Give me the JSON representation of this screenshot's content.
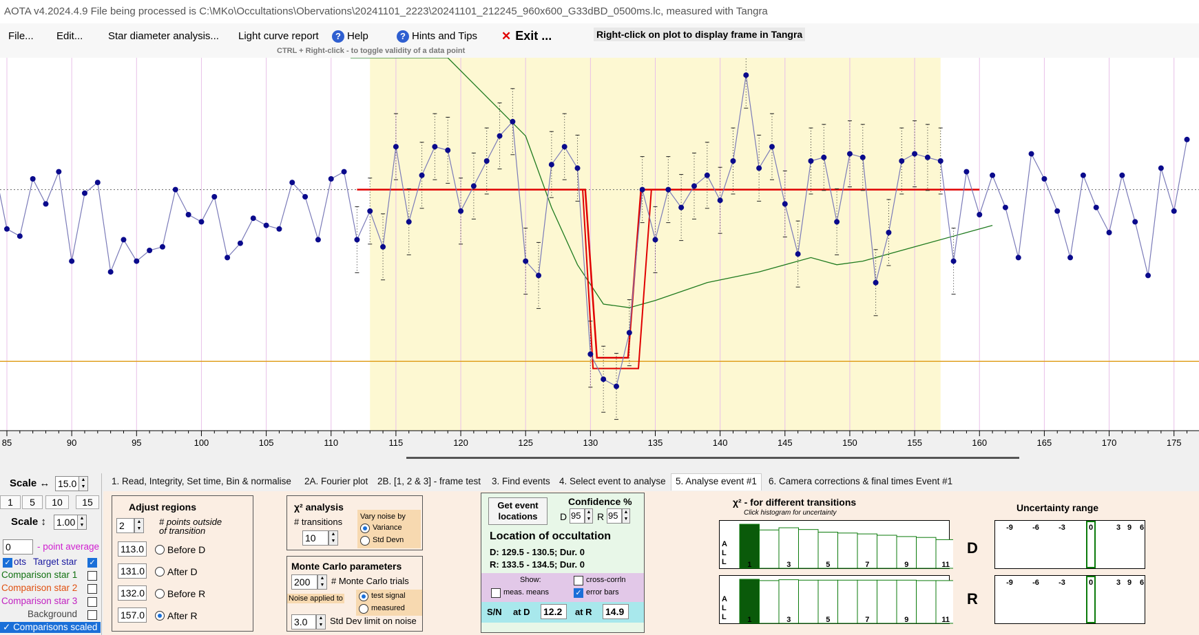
{
  "title": "AOTA v4.2024.4.9    File being processed is C:\\MKo\\Occultations\\Obervations\\20241101_2223\\20241101_212245_960x600_G33dBD_0500ms.lc, measured with Tangra",
  "menu": {
    "file": "File...",
    "edit": "Edit...",
    "star_diameter": "Star diameter analysis...",
    "light_curve": "Light curve report",
    "help": "Help",
    "hints": "Hints and Tips",
    "exit": "Exit ...",
    "rightclick_hint": "Right-click on plot to display frame in Tangra",
    "ctrl_hint": "CTRL + Right-click  -  to toggle validity of a data point"
  },
  "colors": {
    "plot_bg": "#ffffff",
    "event_region": "#fdf8d2",
    "data_line": "#7a7ab8",
    "data_point": "#0a0a8c",
    "model_red": "#e00000",
    "green_curve": "#1e7a1e",
    "orange_line": "#e0a020",
    "pink_grid": "#e8c0e8"
  },
  "chart_data": {
    "type": "line",
    "x_ticks": [
      "85",
      "90",
      "95",
      "100",
      "105",
      "110",
      "115",
      "120",
      "125",
      "130",
      "135",
      "140",
      "145",
      "150",
      "155",
      "160",
      "165",
      "170",
      "175"
    ],
    "xlim": [
      84.5,
      176
    ],
    "ylim": [
      0,
      1
    ],
    "event_region": [
      113,
      157
    ],
    "baseline_y": 0.67,
    "points_x": [
      84,
      85,
      86,
      87,
      88,
      89,
      90,
      91,
      92,
      93,
      94,
      95,
      96,
      97,
      98,
      99,
      100,
      101,
      102,
      103,
      104,
      105,
      106,
      107,
      108,
      109,
      110,
      111,
      112,
      113,
      114,
      115,
      116,
      117,
      118,
      119,
      120,
      121,
      122,
      123,
      124,
      125,
      126,
      127,
      128,
      129,
      130,
      131,
      132,
      133,
      134,
      135,
      136,
      137,
      138,
      139,
      140,
      141,
      142,
      143,
      144,
      145,
      146,
      147,
      148,
      149,
      150,
      151,
      152,
      153,
      154,
      155,
      156,
      157,
      158,
      159,
      160,
      161,
      162,
      163,
      164,
      165,
      166,
      167,
      168,
      169,
      170,
      171,
      172,
      173,
      174,
      175,
      176
    ],
    "points_y": [
      0.74,
      0.56,
      0.54,
      0.7,
      0.63,
      0.72,
      0.47,
      0.66,
      0.69,
      0.44,
      0.53,
      0.47,
      0.5,
      0.51,
      0.67,
      0.6,
      0.58,
      0.65,
      0.48,
      0.52,
      0.59,
      0.57,
      0.56,
      0.69,
      0.65,
      0.53,
      0.7,
      0.72,
      0.53,
      0.61,
      0.51,
      0.79,
      0.58,
      0.71,
      0.79,
      0.78,
      0.61,
      0.68,
      0.75,
      0.82,
      0.86,
      0.47,
      0.43,
      0.74,
      0.79,
      0.73,
      0.21,
      0.14,
      0.12,
      0.27,
      0.67,
      0.53,
      0.67,
      0.62,
      0.68,
      0.71,
      0.64,
      0.75,
      0.99,
      0.73,
      0.79,
      0.63,
      0.49,
      0.75,
      0.76,
      0.58,
      0.77,
      0.76,
      0.41,
      0.55,
      0.75,
      0.77,
      0.76,
      0.75,
      0.47,
      0.72,
      0.6,
      0.71,
      0.62,
      0.48,
      0.77,
      0.7,
      0.61,
      0.48,
      0.71,
      0.62,
      0.55,
      0.71,
      0.58,
      0.43,
      0.73,
      0.61,
      0.81
    ],
    "red_model": {
      "d": 130.0,
      "r": 133.5,
      "top": 0.67,
      "bottom": 0.2
    },
    "green_curve_x": [
      111.5,
      119,
      125,
      127,
      129,
      131,
      133,
      135,
      139,
      143,
      147,
      149,
      151,
      155,
      159,
      161
    ],
    "green_curve_y": [
      1.2,
      1.15,
      0.82,
      0.62,
      0.46,
      0.35,
      0.34,
      0.36,
      0.41,
      0.44,
      0.48,
      0.46,
      0.47,
      0.51,
      0.55,
      0.57
    ],
    "orange_line_y": 0.19
  },
  "left": {
    "scale_h_label": "Scale ↔",
    "scale_h_value": "15.0",
    "scale_btns": [
      "1",
      "5",
      "10",
      "15"
    ],
    "scale_v_label": "Scale ↕",
    "scale_v_value": "1.00",
    "point_avg_value": "0",
    "point_avg_label": "- point average",
    "dots_label": "ots",
    "target_label": "Target star",
    "comp1": "Comparison star 1",
    "comp2": "Comparison star 2",
    "comp3": "Comparison star 3",
    "background": "Background",
    "comps_scaled": "Comparisons scaled"
  },
  "tabs": [
    "1.  Read, Integrity, Set time, Bin & normalise",
    "2A. Fourier plot",
    "2B. [1, 2 & 3] - frame test",
    "3. Find events",
    "4. Select event to analyse",
    "5. Analyse event #1",
    "6. Camera corrections & final times Event #1"
  ],
  "adjust": {
    "title": "Adjust regions",
    "points_value": "2",
    "points_label1": "# points outside",
    "points_label2": "of transition",
    "before_d_val": "113.0",
    "before_d": "Before D",
    "after_d_val": "131.0",
    "after_d": "After D",
    "before_r_val": "132.0",
    "before_r": "Before R",
    "after_r_val": "157.0",
    "after_r": "After R"
  },
  "chi": {
    "title": "χ² analysis",
    "transitions_label": "# transitions",
    "transitions_value": "10",
    "vary_label": "Vary noise by",
    "variance": "Variance",
    "stddevn": "Std Devn"
  },
  "monte": {
    "title": "Monte Carlo parameters",
    "trials_value": "200",
    "trials_label": "# Monte Carlo trials",
    "noise_applied": "Noise applied to",
    "test_signal": "test signal",
    "measured": "measured",
    "std_value": "3.0",
    "std_label": "Std Dev limit on noise"
  },
  "location": {
    "get_btn1": "Get event",
    "get_btn2": "locations",
    "confidence": "Confidence %",
    "d_label": "D",
    "d_value": "95",
    "r_label": "R",
    "r_value": "95",
    "title": "Location of occultation",
    "d_line": "D: 129.5 - 130.5; Dur. 0",
    "r_line": "R: 133.5 - 134.5; Dur. 0",
    "show": "Show:",
    "cross": "cross-corrln",
    "meas_means": "meas. means",
    "error_bars": "error bars",
    "sn": "S/N",
    "at_d": "at D",
    "at_d_value": "12.2",
    "at_r": "at R",
    "at_r_value": "14.9"
  },
  "hist": {
    "title": "χ² - for different transitions",
    "subtitle": "Click histogram for uncertainty",
    "all_letters": [
      "A",
      "L",
      "L"
    ],
    "labels": [
      "1",
      "3",
      "5",
      "7",
      "9",
      "11"
    ],
    "d_values": [
      1.0,
      0.87,
      0.92,
      0.88,
      0.82,
      0.8,
      0.78,
      0.75,
      0.72,
      0.7,
      0.65
    ],
    "r_values": [
      1.0,
      0.97,
      0.99,
      0.98,
      0.98,
      0.98,
      0.98,
      0.98,
      0.98,
      0.97,
      0.97
    ],
    "d_label": "D",
    "r_label": "R"
  },
  "uncert": {
    "title": "Uncertainty range",
    "ticks": [
      "-9",
      "-6",
      "-3",
      "0",
      "3",
      "6",
      "9"
    ]
  }
}
